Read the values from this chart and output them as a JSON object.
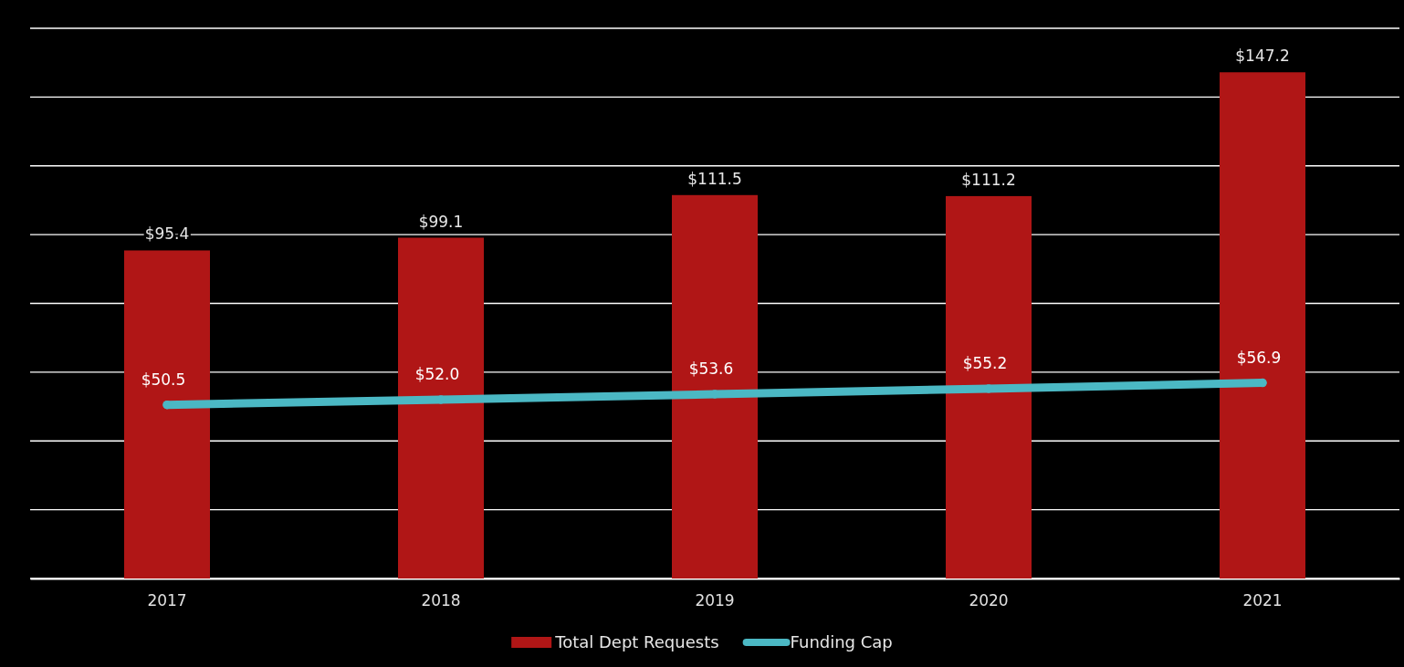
{
  "chart_data": {
    "type": "bar",
    "categories": [
      "2017",
      "2018",
      "2019",
      "2020",
      "2021"
    ],
    "series": [
      {
        "name": "Total Dept Requests",
        "color": "#b01616",
        "values": [
          95.4,
          99.1,
          111.5,
          111.2,
          147.2
        ],
        "value_labels": [
          "$95.4",
          "$99.1",
          "$111.5",
          "$111.2",
          "$147.2"
        ]
      },
      {
        "name": "Funding Cap",
        "type": "line",
        "color": "#4bb8c4",
        "values": [
          50.5,
          52.0,
          53.6,
          55.2,
          56.9
        ],
        "value_labels": [
          "$50.5",
          "$52.0",
          "$53.6",
          "$55.2",
          "$56.9"
        ]
      }
    ],
    "ylim": [
      0,
      160
    ],
    "yticks": [
      {
        "value": 0,
        "label": null
      },
      {
        "value": 20,
        "label": null
      },
      {
        "value": 40,
        "label": null
      },
      {
        "value": 60,
        "label": null
      },
      {
        "value": 80,
        "label": null
      },
      {
        "value": 100,
        "label": null
      },
      {
        "value": 120,
        "label": null
      },
      {
        "value": 140,
        "label": null
      },
      {
        "value": 160,
        "label": null
      }
    ],
    "tick_labels": "x",
    "grid": "y",
    "legend": "bottom",
    "marker": "circle",
    "line_style": "solid"
  }
}
